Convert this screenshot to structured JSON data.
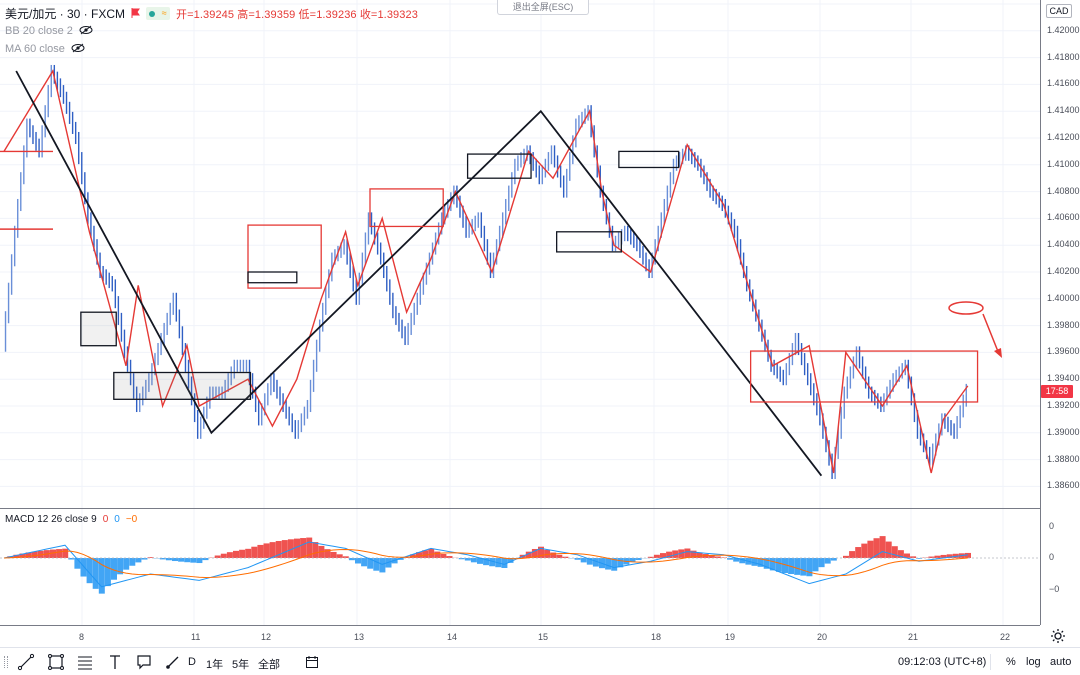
{
  "header": {
    "symbol": "美元/加元 · 30 · FXCM",
    "ohlc": {
      "open_label": "开",
      "open": "1.39245",
      "high_label": "高",
      "high": "1.39359",
      "low_label": "低",
      "low": "1.39236",
      "close_label": "收",
      "close": "1.39323"
    },
    "indicators": [
      "BB 20 close 2",
      "MA 60 close"
    ],
    "exit_fullscreen": "退出全屏(ESC)",
    "currency": "CAD",
    "flag_color": "#f23645",
    "badge_colors": [
      "#26a69a",
      "#ff9800"
    ]
  },
  "price_axis": {
    "labels": [
      "1.42200",
      "1.42000",
      "1.41800",
      "1.41600",
      "1.41400",
      "1.41200",
      "1.41000",
      "1.40800",
      "1.40600",
      "1.40400",
      "1.40200",
      "1.40000",
      "1.39800",
      "1.39600",
      "1.39400",
      "1.39200",
      "1.39000",
      "1.38800",
      "1.38600"
    ],
    "current_price_tag": "17:58",
    "current_price_color": "#f23645"
  },
  "macd_pane": {
    "title": "MACD 12 26 close 9",
    "values": [
      "0",
      "0",
      "−0"
    ],
    "value_colors": [
      "#e53935",
      "#2196f3",
      "#ff6d00"
    ],
    "axis_labels": [
      "0",
      "0",
      "−0"
    ]
  },
  "time_axis": {
    "labels": [
      "8",
      "11",
      "12",
      "13",
      "14",
      "15",
      "18",
      "19",
      "20",
      "21",
      "22"
    ]
  },
  "toolbar": {
    "tools": [
      "trend-line-icon",
      "rectangle-icon",
      "fib-icon",
      "text-icon",
      "callout-icon",
      "brush-icon"
    ],
    "ranges": [
      "D",
      "1年",
      "5年",
      "全部"
    ],
    "compare_icon": "calendar-range-icon",
    "clock": "09:12:03 (UTC+8)",
    "percent": "%",
    "log": "log",
    "auto": "auto"
  },
  "chart_data": {
    "type": "line",
    "symbol": "USD/CAD",
    "interval": "30",
    "ylim": [
      1.385,
      1.422
    ],
    "price_series": [
      [
        0,
        1.3965
      ],
      [
        1,
        1.405
      ],
      [
        2,
        1.413
      ],
      [
        3,
        1.411
      ],
      [
        4,
        1.417
      ],
      [
        5,
        1.415
      ],
      [
        6,
        1.412
      ],
      [
        7,
        1.406
      ],
      [
        8,
        1.402
      ],
      [
        9,
        1.401
      ],
      [
        10,
        1.396
      ],
      [
        11,
        1.392
      ],
      [
        12,
        1.394
      ],
      [
        13,
        1.397
      ],
      [
        14,
        1.4
      ],
      [
        15,
        1.395
      ],
      [
        16,
        1.39
      ],
      [
        17,
        1.393
      ],
      [
        18,
        1.393
      ],
      [
        19,
        1.395
      ],
      [
        20,
        1.395
      ],
      [
        21,
        1.391
      ],
      [
        22,
        1.394
      ],
      [
        23,
        1.392
      ],
      [
        24,
        1.39
      ],
      [
        25,
        1.392
      ],
      [
        26,
        1.398
      ],
      [
        27,
        1.403
      ],
      [
        28,
        1.404
      ],
      [
        29,
        1.4
      ],
      [
        30,
        1.406
      ],
      [
        31,
        1.403
      ],
      [
        32,
        1.399
      ],
      [
        33,
        1.397
      ],
      [
        34,
        1.4
      ],
      [
        35,
        1.403
      ],
      [
        36,
        1.406
      ],
      [
        37,
        1.408
      ],
      [
        38,
        1.405
      ],
      [
        39,
        1.406
      ],
      [
        40,
        1.402
      ],
      [
        41,
        1.406
      ],
      [
        42,
        1.41
      ],
      [
        43,
        1.411
      ],
      [
        44,
        1.409
      ],
      [
        45,
        1.411
      ],
      [
        46,
        1.408
      ],
      [
        47,
        1.413
      ],
      [
        48,
        1.414
      ],
      [
        49,
        1.408
      ],
      [
        50,
        1.404
      ],
      [
        51,
        1.405
      ],
      [
        52,
        1.404
      ],
      [
        53,
        1.402
      ],
      [
        54,
        1.406
      ],
      [
        55,
        1.41
      ],
      [
        56,
        1.411
      ],
      [
        57,
        1.41
      ],
      [
        58,
        1.408
      ],
      [
        59,
        1.407
      ],
      [
        60,
        1.405
      ],
      [
        61,
        1.401
      ],
      [
        62,
        1.398
      ],
      [
        63,
        1.395
      ],
      [
        64,
        1.394
      ],
      [
        65,
        1.397
      ],
      [
        66,
        1.394
      ],
      [
        67,
        1.391
      ],
      [
        68,
        1.387
      ],
      [
        69,
        1.393
      ],
      [
        70,
        1.396
      ],
      [
        71,
        1.393
      ],
      [
        72,
        1.392
      ],
      [
        73,
        1.394
      ],
      [
        74,
        1.395
      ],
      [
        75,
        1.39
      ],
      [
        76,
        1.388
      ],
      [
        77,
        1.391
      ],
      [
        78,
        1.39
      ],
      [
        79,
        1.3932
      ]
    ],
    "macd_series": [
      [
        0,
        0.0
      ],
      [
        5,
        0.4
      ],
      [
        8,
        -0.9
      ],
      [
        12,
        -0.5
      ],
      [
        16,
        -0.7
      ],
      [
        20,
        -0.3
      ],
      [
        25,
        0.5
      ],
      [
        28,
        0.3
      ],
      [
        31,
        -0.2
      ],
      [
        35,
        0.3
      ],
      [
        38,
        0.1
      ],
      [
        41,
        -0.2
      ],
      [
        44,
        0.3
      ],
      [
        47,
        0.1
      ],
      [
        50,
        -0.3
      ],
      [
        53,
        -0.1
      ],
      [
        56,
        0.2
      ],
      [
        59,
        0.1
      ],
      [
        62,
        -0.2
      ],
      [
        66,
        -0.8
      ],
      [
        69,
        -0.5
      ],
      [
        72,
        0.2
      ],
      [
        75,
        -0.1
      ],
      [
        79,
        0.1
      ]
    ],
    "grid": true
  }
}
